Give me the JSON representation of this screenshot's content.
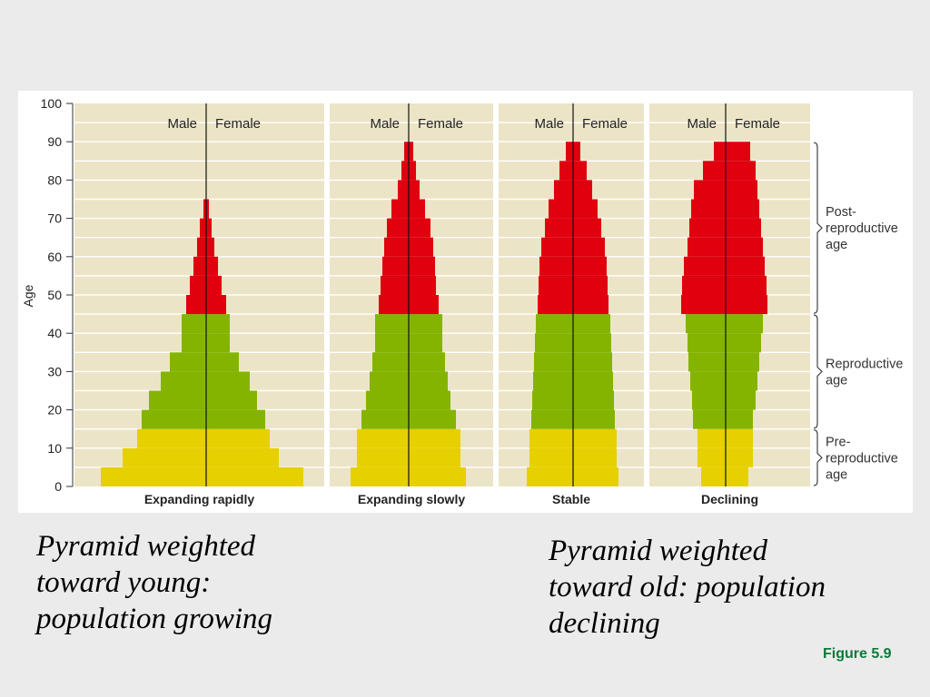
{
  "captions": {
    "left": [
      "Pyramid weighted",
      "toward young:",
      "population growing"
    ],
    "right": [
      "Pyramid weighted",
      "toward old: population",
      "declining"
    ]
  },
  "figure_label": "Figure 5.9",
  "colors": {
    "slide_background": "#ebebeb",
    "panel_background": "#ece4c6",
    "grid_line": "#ffffff",
    "post_reproductive": "#e0000e",
    "reproductive": "#84b400",
    "pre_reproductive": "#e6d000",
    "figure_label": "#0a7a3a"
  },
  "chart_data": {
    "type": "bar",
    "subtype": "population-pyramid",
    "ylabel": "Age",
    "ylim": [
      0,
      100
    ],
    "yticks": [
      0,
      10,
      20,
      30,
      40,
      50,
      60,
      70,
      80,
      90,
      100
    ],
    "bin_width": 5,
    "grid": true,
    "age_bins": [
      0,
      5,
      10,
      15,
      20,
      25,
      30,
      35,
      40,
      45,
      50,
      55,
      60,
      65,
      70,
      75,
      80,
      85
    ],
    "panels": [
      {
        "name": "Expanding rapidly",
        "male_label": "Male",
        "female_label": "Female",
        "male": [
          116,
          92,
          76,
          71,
          63,
          50,
          40,
          27,
          27,
          22,
          18,
          14,
          10,
          7,
          3
        ],
        "female": [
          107,
          80,
          70,
          65,
          56,
          48,
          36,
          26,
          26,
          22,
          17,
          13,
          9,
          6,
          3
        ]
      },
      {
        "name": "Expanding slowly",
        "male_label": "Male",
        "female_label": "Female",
        "male": [
          64,
          57,
          57,
          52,
          47,
          43,
          40,
          37,
          37,
          33,
          31,
          29,
          27,
          24,
          19,
          12,
          8,
          5
        ],
        "female": [
          63,
          57,
          57,
          52,
          46,
          43,
          40,
          37,
          37,
          33,
          30,
          29,
          27,
          24,
          18,
          12,
          8,
          5
        ]
      },
      {
        "name": "Stable",
        "male_label": "Male",
        "female_label": "Female",
        "male": [
          51,
          48,
          48,
          46,
          45,
          44,
          43,
          42,
          41,
          39,
          38,
          37,
          35,
          31,
          27,
          21,
          15,
          8
        ],
        "female": [
          50,
          48,
          48,
          46,
          45,
          44,
          43,
          42,
          41,
          39,
          38,
          37,
          35,
          31,
          27,
          21,
          15,
          8
        ]
      },
      {
        "name": "Declining",
        "male_label": "Male",
        "female_label": "Female",
        "male": [
          27,
          31,
          31,
          36,
          37,
          39,
          41,
          42,
          44,
          49,
          48,
          46,
          42,
          40,
          38,
          35,
          25,
          13
        ],
        "female": [
          25,
          30,
          30,
          30,
          33,
          35,
          37,
          39,
          41,
          46,
          45,
          43,
          41,
          39,
          37,
          35,
          33,
          27
        ]
      }
    ],
    "groups": [
      {
        "label": [
          "Post-",
          "reproductive",
          "age"
        ],
        "from": 45,
        "to": 90,
        "color": "post_reproductive"
      },
      {
        "label": [
          "Reproductive",
          "age"
        ],
        "from": 15,
        "to": 45,
        "color": "reproductive"
      },
      {
        "label": [
          "Pre-",
          "reproductive",
          "age"
        ],
        "from": 0,
        "to": 15,
        "color": "pre_reproductive"
      }
    ]
  }
}
